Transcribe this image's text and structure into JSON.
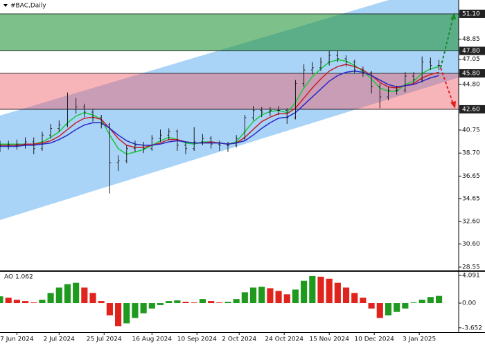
{
  "chart_data": [
    {
      "type": "ohlc",
      "title": "#BAC,Daily",
      "x": [
        0,
        3,
        6,
        9,
        12,
        15,
        18,
        21,
        24,
        27,
        30,
        33,
        36,
        39,
        42,
        45,
        48,
        51,
        54,
        57,
        60,
        63,
        66,
        69,
        72,
        75,
        78,
        81,
        84,
        87,
        90,
        93,
        96,
        99,
        102,
        105,
        108,
        111,
        114,
        117,
        120,
        123,
        126,
        129,
        132,
        135,
        138,
        141,
        144,
        147,
        150,
        153,
        156
      ],
      "open": [
        39.2,
        39.4,
        39.4,
        39.5,
        39.7,
        39.1,
        40.3,
        40.9,
        41.2,
        42.6,
        42.8,
        42.35,
        41.85,
        41.25,
        37.85,
        38.0,
        39.1,
        39.4,
        39.1,
        40.0,
        40.3,
        40.6,
        39.4,
        39.1,
        39.7,
        40.0,
        39.5,
        39.4,
        39.4,
        40.0,
        41.85,
        42.5,
        42.35,
        42.5,
        42.5,
        41.85,
        44.9,
        46.1,
        46.3,
        46.8,
        47.4,
        47.1,
        46.8,
        46.1,
        45.85,
        44.6,
        43.7,
        44.3,
        44.3,
        45.55,
        45.25,
        46.8,
        46.5
      ],
      "high": [
        39.8,
        39.8,
        39.9,
        40.1,
        40.1,
        40.6,
        41.3,
        41.6,
        44.1,
        43.6,
        43.1,
        42.6,
        42.1,
        41.4,
        38.5,
        39.4,
        39.8,
        39.7,
        40.3,
        40.8,
        40.9,
        40.8,
        39.7,
        41.0,
        40.4,
        40.2,
        39.8,
        39.7,
        40.3,
        42.1,
        42.9,
        42.8,
        42.8,
        42.9,
        42.7,
        45.2,
        46.6,
        46.8,
        47.2,
        47.8,
        47.8,
        47.4,
        47.0,
        46.4,
        46.0,
        44.9,
        44.6,
        44.7,
        45.9,
        45.9,
        47.3,
        47.2,
        47.0
      ],
      "low": [
        38.8,
        39.0,
        39.0,
        39.1,
        38.6,
        38.9,
        40.0,
        40.6,
        41.0,
        42.2,
        41.9,
        41.5,
        40.9,
        35.1,
        37.1,
        37.8,
        38.8,
        38.7,
        38.9,
        39.7,
        39.9,
        38.9,
        38.6,
        38.9,
        39.4,
        39.1,
        38.9,
        38.8,
        39.2,
        39.8,
        41.6,
        41.9,
        42.0,
        42.1,
        41.3,
        41.7,
        44.6,
        45.7,
        46.0,
        46.5,
        46.8,
        46.4,
        45.8,
        45.5,
        44.0,
        42.7,
        43.4,
        43.9,
        44.1,
        44.9,
        45.0,
        46.1,
        46.1
      ],
      "close": [
        39.4,
        39.4,
        39.5,
        39.7,
        39.1,
        40.3,
        40.9,
        41.2,
        42.6,
        42.8,
        42.35,
        41.85,
        41.25,
        37.85,
        38.0,
        39.1,
        39.4,
        39.1,
        40.0,
        40.3,
        40.6,
        39.4,
        39.1,
        39.7,
        40.0,
        39.5,
        39.4,
        39.4,
        40.0,
        41.85,
        42.5,
        42.35,
        42.5,
        42.5,
        41.85,
        44.9,
        46.1,
        46.3,
        46.8,
        47.4,
        47.1,
        46.8,
        46.1,
        45.85,
        44.6,
        43.7,
        44.3,
        44.3,
        45.55,
        45.25,
        46.8,
        46.5,
        46.5
      ],
      "bar_color": "#1a1a1a",
      "series": [
        {
          "color": "#19c93c",
          "values": [
            39.5,
            39.5,
            39.5,
            39.5,
            39.5,
            39.7,
            40.1,
            40.6,
            41.4,
            42.0,
            42.3,
            42.1,
            41.7,
            40.3,
            39.1,
            38.6,
            38.8,
            39.0,
            39.4,
            39.8,
            40.1,
            39.9,
            39.6,
            39.5,
            39.7,
            39.7,
            39.6,
            39.5,
            39.7,
            40.6,
            41.5,
            42.1,
            42.4,
            42.5,
            42.3,
            43.2,
            44.5,
            45.5,
            46.2,
            46.8,
            47.0,
            46.9,
            46.5,
            46.0,
            45.3,
            44.5,
            44.2,
            44.2,
            44.8,
            45.1,
            45.8,
            46.2,
            46.4
          ]
        },
        {
          "color": "#c81e28",
          "values": [
            39.4,
            39.4,
            39.4,
            39.5,
            39.5,
            39.6,
            39.8,
            40.2,
            40.8,
            41.4,
            41.8,
            41.9,
            41.7,
            40.9,
            40.0,
            39.4,
            39.2,
            39.2,
            39.4,
            39.6,
            39.9,
            39.9,
            39.7,
            39.6,
            39.6,
            39.7,
            39.6,
            39.5,
            39.6,
            40.1,
            40.8,
            41.5,
            41.9,
            42.2,
            42.2,
            42.7,
            43.6,
            44.5,
            45.3,
            46.0,
            46.4,
            46.6,
            46.4,
            46.1,
            45.6,
            45.0,
            44.6,
            44.5,
            44.7,
            44.9,
            45.4,
            45.7,
            45.9
          ]
        },
        {
          "color": "#2828c8",
          "values": [
            39.3,
            39.3,
            39.3,
            39.4,
            39.4,
            39.5,
            39.6,
            39.9,
            40.3,
            40.8,
            41.2,
            41.4,
            41.4,
            40.9,
            40.3,
            39.8,
            39.5,
            39.4,
            39.4,
            39.5,
            39.7,
            39.8,
            39.7,
            39.6,
            39.6,
            39.6,
            39.6,
            39.5,
            39.6,
            39.8,
            40.3,
            40.9,
            41.4,
            41.8,
            41.9,
            42.3,
            43.0,
            43.7,
            44.4,
            45.1,
            45.6,
            45.9,
            46.0,
            45.9,
            45.6,
            45.2,
            44.8,
            44.6,
            44.7,
            44.8,
            45.1,
            45.4,
            45.6
          ]
        }
      ],
      "channel": {
        "x": [
          0,
          163
        ],
        "upper": [
          42.04,
          54.18
        ],
        "lower": [
          32.74,
          45.43
        ],
        "color": "#a9d3f7"
      },
      "zones": [
        {
          "from": 47.8,
          "to": 51.1,
          "color": "rgba(40,150,60,0.6)"
        },
        {
          "from": 42.6,
          "to": 45.8,
          "color": "rgba(240,90,100,0.45)"
        }
      ],
      "xlim": [
        0,
        163
      ],
      "ylim": [
        28.3,
        52.33
      ],
      "yticks": [
        {
          "value": 51.1,
          "label": "51.10"
        },
        {
          "value": 48.85,
          "label": "48.85"
        },
        {
          "value": 47.8,
          "label": "47.80"
        },
        {
          "value": 47.05,
          "label": "47.05"
        },
        {
          "value": 45.8,
          "label": "45.80"
        },
        {
          "value": 44.8,
          "label": "44.80"
        },
        {
          "value": 42.6,
          "label": "42.60"
        },
        {
          "value": 40.75,
          "label": "40.75"
        },
        {
          "value": 38.7,
          "label": "38.70"
        },
        {
          "value": 36.65,
          "label": "36.65"
        },
        {
          "value": 34.65,
          "label": "34.65"
        },
        {
          "value": 32.6,
          "label": "32.60"
        },
        {
          "value": 30.6,
          "label": "30.60"
        },
        {
          "value": 28.55,
          "label": "28.55"
        }
      ]
    },
    {
      "type": "bar",
      "title": "AO 1.062",
      "x": [
        0,
        3,
        6,
        9,
        12,
        15,
        18,
        21,
        24,
        27,
        30,
        33,
        36,
        39,
        42,
        45,
        48,
        51,
        54,
        57,
        60,
        63,
        66,
        69,
        72,
        75,
        78,
        81,
        84,
        87,
        90,
        93,
        96,
        99,
        102,
        105,
        108,
        111,
        114,
        117,
        120,
        123,
        126,
        129,
        132,
        135,
        138,
        141,
        144,
        147,
        150,
        153,
        156
      ],
      "values": [
        1.0,
        0.8,
        0.5,
        0.3,
        0.1,
        0.5,
        1.5,
        2.3,
        2.8,
        3.0,
        2.3,
        1.5,
        0.3,
        -1.8,
        -3.4,
        -3.0,
        -2.2,
        -1.5,
        -0.8,
        -0.3,
        0.3,
        0.4,
        0.2,
        0.1,
        0.6,
        0.3,
        0.1,
        0.2,
        0.6,
        1.6,
        2.3,
        2.4,
        2.2,
        1.8,
        1.3,
        2.0,
        3.3,
        4.0,
        3.9,
        3.6,
        3.0,
        2.3,
        1.5,
        0.8,
        -0.8,
        -2.2,
        -1.8,
        -1.3,
        -0.8,
        0.1,
        0.5,
        0.9,
        1.062
      ],
      "up_color": "#1f9a1f",
      "down_color": "#e0231c",
      "xlim": [
        0,
        163
      ],
      "ylim": [
        -4.29,
        4.6
      ],
      "yticks": [
        4.091,
        {
          "value": 0,
          "label": "0.00"
        },
        -3.652
      ],
      "xticks": [
        {
          "value": 6,
          "label": "7 Jun 2024"
        },
        {
          "value": 21,
          "label": "2 Jul 2024"
        },
        {
          "value": 37,
          "label": "25 Jul 2024"
        },
        {
          "value": 54,
          "label": "16 Aug 2024"
        },
        {
          "value": 70,
          "label": "10 Sep 2024"
        },
        {
          "value": 85,
          "label": "2 Oct 2024"
        },
        {
          "value": 101,
          "label": "24 Oct 2024"
        },
        {
          "value": 117,
          "label": "15 Nov 2024"
        },
        {
          "value": 133,
          "label": "10 Dec 2024"
        },
        {
          "value": 149,
          "label": "3 Jan 2025"
        }
      ]
    }
  ]
}
